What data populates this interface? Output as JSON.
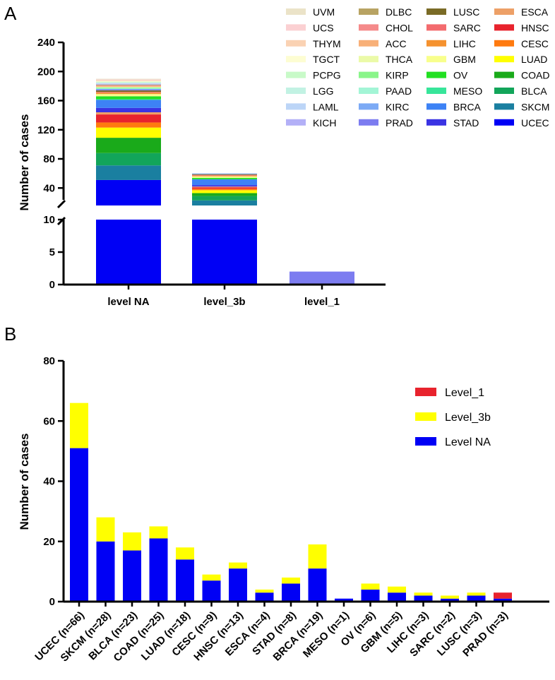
{
  "panels": {
    "a": {
      "letter": "A"
    },
    "b": {
      "letter": "B"
    }
  },
  "chart_data": [
    {
      "panel": "A",
      "type": "bar",
      "stacked": true,
      "ylabel": "Number of cases",
      "xlabel": "",
      "broken_y_axis": true,
      "lower_segment": {
        "ylim": [
          0,
          10
        ],
        "ticks": [
          0,
          5,
          10
        ]
      },
      "upper_segment": {
        "ylim": [
          16,
          240
        ],
        "ticks": [
          40,
          80,
          120,
          160,
          200,
          240
        ]
      },
      "categories": [
        "level NA",
        "level_3b",
        "level_1"
      ],
      "legend_position": "top-right",
      "legend_order": [
        "UVM",
        "UCS",
        "THYM",
        "TGCT",
        "PCPG",
        "LGG",
        "LAML",
        "KICH",
        "DLBC",
        "CHOL",
        "ACC",
        "THCA",
        "KIRP",
        "PAAD",
        "KIRC",
        "PRAD",
        "LUSC",
        "SARC",
        "LIHC",
        "GBM",
        "OV",
        "MESO",
        "BRCA",
        "STAD",
        "ESCA",
        "HNSC",
        "CESC",
        "LUAD",
        "COAD",
        "BLCA",
        "SKCM",
        "UCEC"
      ],
      "series": [
        {
          "name": "UCEC",
          "color": "#0000f5",
          "values": [
            51,
            15,
            0
          ]
        },
        {
          "name": "SKCM",
          "color": "#1a7fa0",
          "values": [
            20,
            8,
            0
          ]
        },
        {
          "name": "BLCA",
          "color": "#12a55a",
          "values": [
            17,
            6,
            0
          ]
        },
        {
          "name": "COAD",
          "color": "#1aaa1a",
          "values": [
            21,
            4,
            0
          ]
        },
        {
          "name": "LUAD",
          "color": "#ffff00",
          "values": [
            14,
            4,
            0
          ]
        },
        {
          "name": "CESC",
          "color": "#ff7a0f",
          "values": [
            7,
            2,
            0
          ]
        },
        {
          "name": "HNSC",
          "color": "#e8232d",
          "values": [
            11,
            2,
            0
          ]
        },
        {
          "name": "ESCA",
          "color": "#eda067",
          "values": [
            3,
            1,
            0
          ]
        },
        {
          "name": "STAD",
          "color": "#3a33e3",
          "values": [
            6,
            2,
            0
          ]
        },
        {
          "name": "BRCA",
          "color": "#3d82f5",
          "values": [
            11,
            8,
            0
          ]
        },
        {
          "name": "MESO",
          "color": "#37e59a",
          "values": [
            1,
            0,
            0
          ]
        },
        {
          "name": "OV",
          "color": "#22e022",
          "values": [
            4,
            2,
            0
          ]
        },
        {
          "name": "GBM",
          "color": "#f8ff8c",
          "values": [
            3,
            2,
            0
          ]
        },
        {
          "name": "LIHC",
          "color": "#f5922f",
          "values": [
            2,
            1,
            0
          ]
        },
        {
          "name": "SARC",
          "color": "#f36b6e",
          "values": [
            1,
            1,
            0
          ]
        },
        {
          "name": "LUSC",
          "color": "#7a6b26",
          "values": [
            2,
            1,
            0
          ]
        },
        {
          "name": "PRAD",
          "color": "#7c7cf0",
          "values": [
            1,
            0,
            2
          ]
        },
        {
          "name": "KIRC",
          "color": "#7caaf5",
          "values": [
            1,
            1,
            0
          ]
        },
        {
          "name": "PAAD",
          "color": "#a3f5d6",
          "values": [
            1,
            0,
            0
          ]
        },
        {
          "name": "KIRP",
          "color": "#8af58a",
          "values": [
            1,
            0,
            0
          ]
        },
        {
          "name": "THCA",
          "color": "#ebfaa8",
          "values": [
            1,
            0,
            0
          ]
        },
        {
          "name": "ACC",
          "color": "#f8b078",
          "values": [
            1,
            0,
            0
          ]
        },
        {
          "name": "CHOL",
          "color": "#f58a8a",
          "values": [
            1,
            0,
            0
          ]
        },
        {
          "name": "DLBC",
          "color": "#b8a363",
          "values": [
            1,
            0,
            0
          ]
        },
        {
          "name": "KICH",
          "color": "#b3b0f7",
          "values": [
            1,
            0,
            0
          ]
        },
        {
          "name": "LAML",
          "color": "#bcd5f7",
          "values": [
            1,
            0,
            0
          ]
        },
        {
          "name": "LGG",
          "color": "#c2f2e3",
          "values": [
            1,
            0,
            0
          ]
        },
        {
          "name": "PCPG",
          "color": "#c8fac8",
          "values": [
            1,
            0,
            0
          ]
        },
        {
          "name": "TGCT",
          "color": "#fdfdd2",
          "values": [
            1,
            0,
            0
          ]
        },
        {
          "name": "THYM",
          "color": "#fad2b3",
          "values": [
            1,
            0,
            0
          ]
        },
        {
          "name": "UCS",
          "color": "#fbd0d2",
          "values": [
            1,
            0,
            0
          ]
        },
        {
          "name": "UVM",
          "color": "#ebe3c8",
          "values": [
            1,
            0,
            0
          ]
        }
      ]
    },
    {
      "panel": "B",
      "type": "bar",
      "stacked": true,
      "ylabel": "Number of cases",
      "xlabel": "",
      "ylim": [
        0,
        80
      ],
      "yticks": [
        0,
        20,
        40,
        60,
        80
      ],
      "legend_position": "top-right",
      "categories": [
        "UCEC (n=66)",
        "SKCM (n=28)",
        "BLCA (n=23)",
        "COAD (n=25)",
        "LUAD (n=18)",
        "CESC (n=9)",
        "HNSC (n=13)",
        "ESCA (n=4)",
        "STAD (n=8)",
        "BRCA (n=19)",
        "MESO (n=1)",
        "OV (n=6)",
        "GBM (n=5)",
        "LIHC (n=3)",
        "SARC (n=2)",
        "LUSC (n=3)",
        "PRAD (n=3)"
      ],
      "legend_order": [
        "Level_1",
        "Level_3b",
        "Level NA"
      ],
      "series": [
        {
          "name": "Level NA",
          "color": "#0000f5",
          "values": [
            51,
            20,
            17,
            21,
            14,
            7,
            11,
            3,
            6,
            11,
            1,
            4,
            3,
            2,
            1,
            2,
            1
          ]
        },
        {
          "name": "Level_3b",
          "color": "#ffff00",
          "values": [
            15,
            8,
            6,
            4,
            4,
            2,
            2,
            1,
            2,
            8,
            0,
            2,
            2,
            1,
            1,
            1,
            0
          ]
        },
        {
          "name": "Level_1",
          "color": "#e8232d",
          "values": [
            0,
            0,
            0,
            0,
            0,
            0,
            0,
            0,
            0,
            0,
            0,
            0,
            0,
            0,
            0,
            0,
            2
          ]
        }
      ]
    }
  ]
}
